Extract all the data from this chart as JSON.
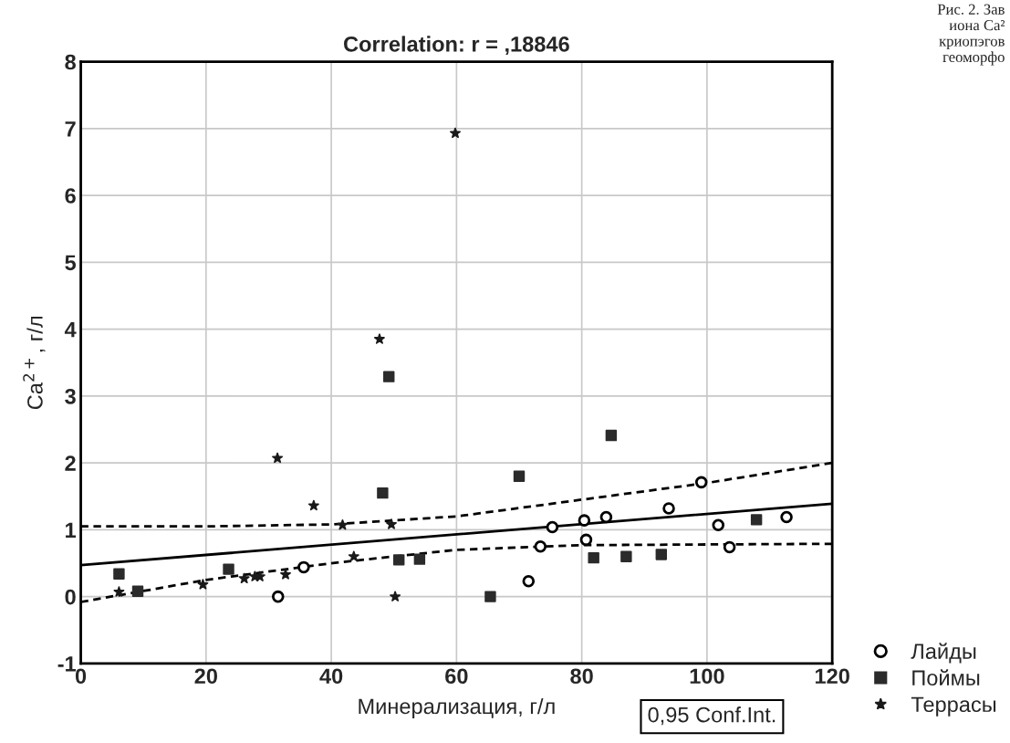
{
  "chart_data": {
    "type": "scatter",
    "title": "Correlation: r = ,18846",
    "xlabel": "Минерализация, г/л",
    "ylabel": "Ca$^{2+}$, г/л",
    "xlim": [
      0,
      120
    ],
    "xticks": [
      0,
      20,
      40,
      60,
      80,
      100,
      120
    ],
    "ylim": [
      -1,
      8
    ],
    "yticks": [
      -1,
      0,
      1,
      2,
      3,
      4,
      5,
      6,
      7,
      8
    ],
    "grid": true,
    "legend": "bottom right",
    "annotations": [
      "0,95 Conf.Int.",
      "Рис. 2. Зав\nиона Ca²\nкриопэгов\n геоморфо"
    ],
    "series": [
      {
        "name": "Лайды",
        "marker": "circle",
        "color": "#000000",
        "x": [
          31.5,
          35.6,
          71.5,
          73.4,
          75.3,
          80.4,
          80.7,
          83.9,
          93.9,
          99.1,
          101.8,
          103.6,
          112.7
        ],
        "values": [
          0.0,
          0.44,
          0.23,
          0.75,
          1.04,
          1.14,
          0.85,
          1.19,
          1.32,
          1.71,
          1.07,
          0.74,
          1.19
        ]
      },
      {
        "name": "Поймы",
        "marker": "square",
        "color": "#2b2b2b",
        "x": [
          6.1,
          9.1,
          23.6,
          48.2,
          49.2,
          50.8,
          54.1,
          65.4,
          70.0,
          81.9,
          84.7,
          87.1,
          92.7,
          107.9
        ],
        "values": [
          0.34,
          0.08,
          0.41,
          1.55,
          3.29,
          0.55,
          0.56,
          0.0,
          1.8,
          0.58,
          2.41,
          0.6,
          0.63,
          1.15
        ]
      },
      {
        "name": "Террасы",
        "marker": "star",
        "color": "#1a1a1a",
        "x": [
          6.1,
          19.5,
          26.1,
          27.8,
          28.6,
          31.4,
          32.7,
          37.2,
          41.8,
          43.6,
          47.7,
          49.6,
          50.2,
          59.8
        ],
        "values": [
          0.07,
          0.18,
          0.27,
          0.3,
          0.3,
          2.07,
          0.33,
          1.36,
          1.07,
          0.6,
          3.85,
          1.08,
          0.0,
          6.93
        ]
      },
      {
        "type": "line",
        "line_style": "solid",
        "color": "#000000",
        "x": [
          0,
          120
        ],
        "values": [
          0.47,
          1.39
        ]
      },
      {
        "type": "line",
        "line_style": "dashed",
        "color": "#000000",
        "x": [
          0,
          20,
          40,
          60,
          80,
          100,
          120
        ],
        "values": [
          1.05,
          1.05,
          1.08,
          1.2,
          1.45,
          1.7,
          2.0
        ]
      },
      {
        "type": "line",
        "line_style": "dashed",
        "color": "#000000",
        "x": [
          0,
          20,
          40,
          60,
          80,
          100,
          120
        ],
        "values": [
          -0.08,
          0.25,
          0.5,
          0.7,
          0.77,
          0.78,
          0.79
        ]
      }
    ]
  }
}
